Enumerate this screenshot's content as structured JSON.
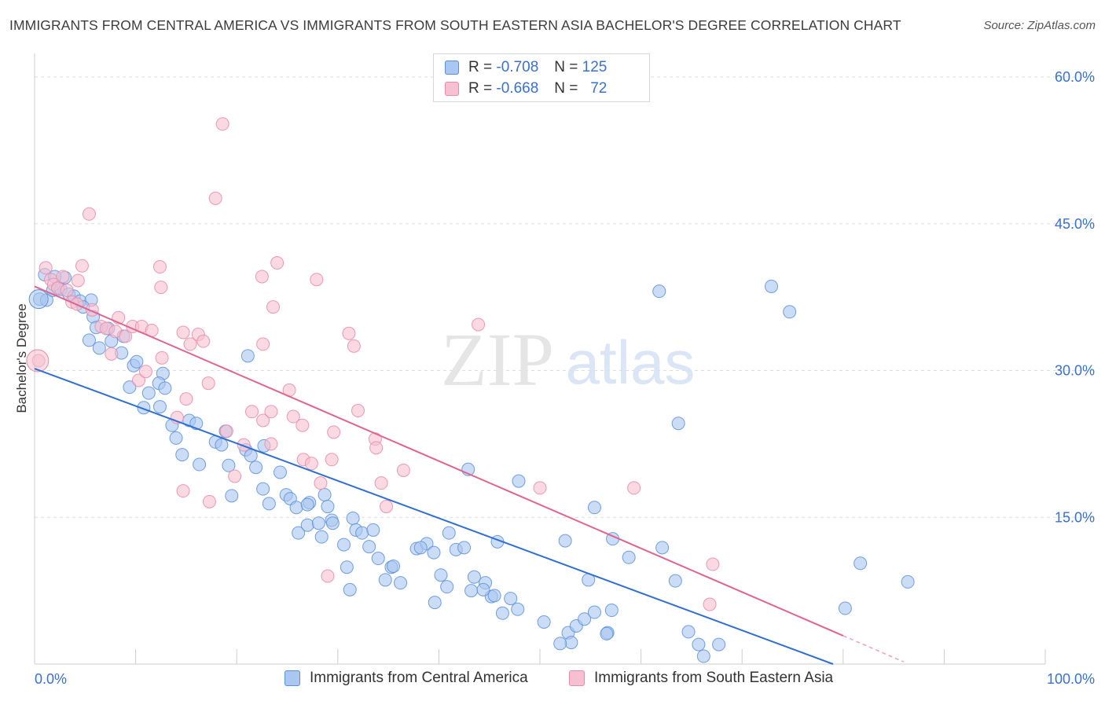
{
  "title": "IMMIGRANTS FROM CENTRAL AMERICA VS IMMIGRANTS FROM SOUTH EASTERN ASIA BACHELOR'S DEGREE CORRELATION CHART",
  "source": "Source: ZipAtlas.com",
  "watermark": {
    "zip": "ZIP",
    "atlas": "atlas"
  },
  "colors": {
    "blue_fill": "#a9c7f0",
    "blue_stroke": "#5b8fdc",
    "blue_line": "#2f6fd0",
    "pink_fill": "#f6c0d0",
    "pink_stroke": "#e98aa8",
    "pink_line": "#e0648e",
    "axis_text": "#3a6fd4",
    "grid": "#dddddd"
  },
  "stats": {
    "rows": [
      {
        "r_label": "R =",
        "r_value": "-0.708",
        "n_label": "N =",
        "n_value": "125"
      },
      {
        "r_label": "R =",
        "r_value": "-0.668",
        "n_label": "N =",
        "n_value": "72"
      }
    ]
  },
  "chart_data": {
    "type": "scatter",
    "title": "IMMIGRANTS FROM CENTRAL AMERICA VS IMMIGRANTS FROM SOUTH EASTERN ASIA BACHELOR'S DEGREE CORRELATION CHART",
    "xlabel": "",
    "ylabel": "Bachelor's Degree",
    "xlim": [
      0,
      100
    ],
    "ylim": [
      0,
      60
    ],
    "x_tick_labels": {
      "left": "0.0%",
      "right": "100.0%"
    },
    "y_ticks": [
      {
        "value": 60,
        "label": "60.0%"
      },
      {
        "value": 45,
        "label": "45.0%"
      },
      {
        "value": 30,
        "label": "30.0%"
      },
      {
        "value": 15,
        "label": "15.0%"
      }
    ],
    "grid": true,
    "legend_position": "bottom",
    "series": [
      {
        "name": "Immigrants from Central America",
        "color": "#a9c7f0",
        "trend": {
          "x": [
            0,
            79
          ],
          "y": [
            30.2,
            0
          ]
        },
        "points": [
          [
            0.5,
            37.3
          ],
          [
            1.2,
            37.2
          ],
          [
            1.8,
            38.2
          ],
          [
            2.3,
            38.5
          ],
          [
            2.6,
            38.3
          ],
          [
            3.0,
            39.5
          ],
          [
            3.4,
            37.8
          ],
          [
            3.9,
            37.6
          ],
          [
            4.5,
            37.1
          ],
          [
            5.6,
            37.2
          ],
          [
            5.8,
            35.5
          ],
          [
            4.8,
            36.5
          ],
          [
            1.0,
            39.8
          ],
          [
            2.0,
            39.6
          ],
          [
            6.1,
            34.4
          ],
          [
            7.3,
            34.3
          ],
          [
            8.8,
            33.5
          ],
          [
            5.4,
            33.1
          ],
          [
            6.4,
            32.3
          ],
          [
            7.6,
            33.0
          ],
          [
            8.6,
            31.8
          ],
          [
            9.8,
            30.5
          ],
          [
            10.1,
            30.9
          ],
          [
            12.7,
            29.7
          ],
          [
            12.3,
            28.7
          ],
          [
            9.4,
            28.3
          ],
          [
            11.3,
            27.7
          ],
          [
            12.9,
            28.2
          ],
          [
            10.8,
            26.2
          ],
          [
            12.4,
            26.3
          ],
          [
            13.6,
            24.4
          ],
          [
            15.3,
            24.9
          ],
          [
            16.0,
            24.6
          ],
          [
            14.0,
            23.1
          ],
          [
            18.9,
            23.8
          ],
          [
            17.9,
            22.7
          ],
          [
            18.5,
            22.4
          ],
          [
            22.7,
            22.3
          ],
          [
            14.6,
            21.4
          ],
          [
            20.9,
            21.9
          ],
          [
            21.4,
            21.3
          ],
          [
            16.3,
            20.4
          ],
          [
            19.2,
            20.3
          ],
          [
            21.9,
            20.1
          ],
          [
            24.3,
            19.6
          ],
          [
            22.6,
            17.9
          ],
          [
            19.5,
            17.2
          ],
          [
            24.9,
            17.3
          ],
          [
            23.2,
            16.4
          ],
          [
            25.3,
            16.9
          ],
          [
            28.7,
            17.3
          ],
          [
            27.2,
            16.5
          ],
          [
            25.9,
            16.0
          ],
          [
            27.0,
            16.3
          ],
          [
            29.0,
            16.1
          ],
          [
            26.1,
            13.4
          ],
          [
            27.0,
            14.2
          ],
          [
            28.1,
            14.4
          ],
          [
            28.4,
            13.0
          ],
          [
            29.4,
            14.7
          ],
          [
            29.5,
            14.4
          ],
          [
            31.5,
            14.9
          ],
          [
            31.8,
            13.7
          ],
          [
            32.4,
            13.4
          ],
          [
            33.5,
            13.7
          ],
          [
            30.6,
            12.2
          ],
          [
            33.1,
            12.0
          ],
          [
            34.0,
            10.8
          ],
          [
            35.3,
            9.9
          ],
          [
            34.7,
            8.6
          ],
          [
            36.2,
            8.3
          ],
          [
            35.5,
            10.0
          ],
          [
            37.8,
            11.8
          ],
          [
            38.8,
            12.3
          ],
          [
            38.2,
            11.9
          ],
          [
            39.5,
            11.4
          ],
          [
            41.0,
            13.4
          ],
          [
            40.2,
            9.1
          ],
          [
            41.7,
            11.7
          ],
          [
            42.5,
            11.9
          ],
          [
            45.8,
            12.5
          ],
          [
            43.5,
            8.9
          ],
          [
            44.6,
            8.3
          ],
          [
            43.2,
            7.5
          ],
          [
            45.2,
            6.9
          ],
          [
            45.5,
            7.0
          ],
          [
            44.4,
            7.6
          ],
          [
            39.6,
            6.3
          ],
          [
            40.8,
            7.9
          ],
          [
            30.9,
            9.9
          ],
          [
            31.2,
            7.6
          ],
          [
            46.3,
            5.2
          ],
          [
            47.1,
            6.7
          ],
          [
            47.8,
            5.6
          ],
          [
            50.4,
            4.3
          ],
          [
            52.8,
            3.2
          ],
          [
            53.6,
            3.9
          ],
          [
            54.4,
            4.6
          ],
          [
            55.4,
            5.3
          ],
          [
            57.1,
            5.5
          ],
          [
            56.7,
            3.2
          ],
          [
            56.6,
            3.1
          ],
          [
            52.5,
            12.6
          ],
          [
            55.4,
            16.0
          ],
          [
            54.8,
            8.6
          ],
          [
            57.2,
            12.8
          ],
          [
            58.8,
            10.9
          ],
          [
            62.1,
            11.9
          ],
          [
            63.4,
            8.5
          ],
          [
            65.7,
            2.0
          ],
          [
            67.7,
            2.0
          ],
          [
            66.2,
            0.8
          ],
          [
            64.7,
            3.3
          ],
          [
            53.1,
            2.2
          ],
          [
            52.0,
            2.1
          ],
          [
            61.8,
            38.1
          ],
          [
            72.9,
            38.6
          ],
          [
            74.7,
            36.0
          ],
          [
            63.7,
            24.6
          ],
          [
            42.9,
            19.9
          ],
          [
            47.9,
            18.7
          ],
          [
            80.2,
            5.7
          ],
          [
            81.7,
            10.3
          ],
          [
            86.4,
            8.4
          ],
          [
            21.1,
            31.5
          ]
        ]
      },
      {
        "name": "Immigrants from South Eastern Asia",
        "color": "#f6c0d0",
        "trend": {
          "x": [
            0,
            80
          ],
          "y": [
            38.6,
            2.9
          ]
        },
        "points": [
          [
            0.4,
            31.0
          ],
          [
            1.1,
            40.5
          ],
          [
            1.6,
            39.3
          ],
          [
            1.9,
            38.8
          ],
          [
            2.3,
            38.4
          ],
          [
            2.8,
            39.6
          ],
          [
            3.2,
            38.2
          ],
          [
            3.7,
            37.0
          ],
          [
            4.2,
            36.8
          ],
          [
            4.3,
            39.2
          ],
          [
            4.7,
            40.7
          ],
          [
            5.7,
            36.2
          ],
          [
            5.4,
            46.0
          ],
          [
            6.6,
            34.5
          ],
          [
            7.1,
            34.3
          ],
          [
            8.0,
            34.0
          ],
          [
            8.3,
            35.4
          ],
          [
            9.0,
            33.5
          ],
          [
            9.7,
            34.5
          ],
          [
            10.6,
            34.5
          ],
          [
            7.6,
            31.7
          ],
          [
            10.3,
            29.0
          ],
          [
            11.0,
            29.9
          ],
          [
            11.6,
            34.1
          ],
          [
            12.6,
            31.3
          ],
          [
            12.5,
            38.5
          ],
          [
            12.4,
            40.6
          ],
          [
            14.7,
            33.9
          ],
          [
            15.4,
            32.7
          ],
          [
            16.2,
            33.7
          ],
          [
            16.7,
            33.0
          ],
          [
            17.2,
            28.7
          ],
          [
            15.0,
            27.1
          ],
          [
            14.1,
            25.2
          ],
          [
            14.7,
            17.7
          ],
          [
            17.3,
            16.6
          ],
          [
            19.0,
            23.8
          ],
          [
            19.8,
            19.2
          ],
          [
            20.7,
            22.4
          ],
          [
            21.5,
            25.8
          ],
          [
            22.6,
            24.9
          ],
          [
            23.4,
            22.5
          ],
          [
            23.4,
            25.8
          ],
          [
            22.6,
            32.7
          ],
          [
            22.5,
            39.6
          ],
          [
            23.6,
            36.5
          ],
          [
            24.0,
            41.0
          ],
          [
            25.2,
            28.0
          ],
          [
            25.6,
            25.3
          ],
          [
            26.5,
            24.4
          ],
          [
            26.6,
            20.9
          ],
          [
            27.4,
            20.5
          ],
          [
            27.9,
            39.3
          ],
          [
            28.3,
            18.5
          ],
          [
            29.4,
            20.9
          ],
          [
            29.6,
            23.7
          ],
          [
            31.1,
            33.8
          ],
          [
            31.6,
            32.5
          ],
          [
            32.0,
            25.9
          ],
          [
            33.7,
            23.0
          ],
          [
            33.8,
            22.1
          ],
          [
            34.3,
            18.5
          ],
          [
            34.8,
            16.1
          ],
          [
            36.5,
            19.8
          ],
          [
            29.0,
            9.0
          ],
          [
            43.9,
            34.7
          ],
          [
            50.0,
            18.0
          ],
          [
            17.9,
            47.6
          ],
          [
            18.6,
            55.2
          ],
          [
            59.3,
            18.0
          ],
          [
            67.1,
            10.2
          ],
          [
            66.8,
            6.1
          ]
        ]
      }
    ]
  },
  "legend_bottom": [
    {
      "label": "Immigrants from Central America"
    },
    {
      "label": "Immigrants from South Eastern Asia"
    }
  ]
}
